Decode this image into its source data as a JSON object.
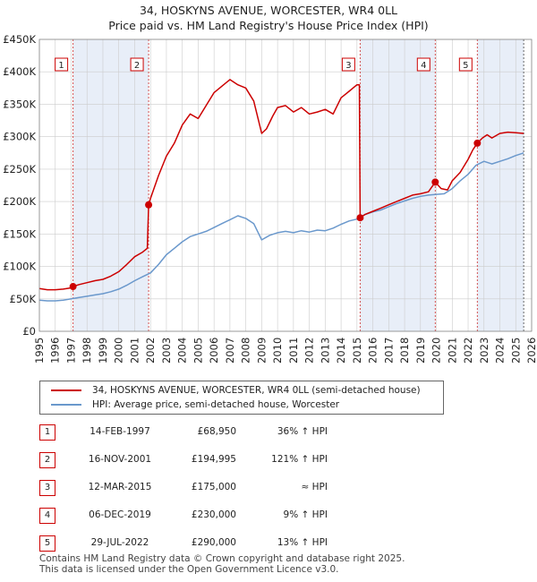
{
  "title_line1": "34, HOSKYNS AVENUE, WORCESTER, WR4 0LL",
  "title_line2": "Price paid vs. HM Land Registry's House Price Index (HPI)",
  "legend": {
    "red_label": "34, HOSKYNS AVENUE, WORCESTER, WR4 0LL (semi-detached house)",
    "blue_label": "HPI: Average price, semi-detached house, Worcester"
  },
  "sales": [
    {
      "num": "1",
      "date": "14-FEB-1997",
      "price": "£68,950",
      "hpi": "36% ↑ HPI"
    },
    {
      "num": "2",
      "date": "16-NOV-2001",
      "price": "£194,995",
      "hpi": "121% ↑ HPI"
    },
    {
      "num": "3",
      "date": "12-MAR-2015",
      "price": "£175,000",
      "hpi": "≈ HPI"
    },
    {
      "num": "4",
      "date": "06-DEC-2019",
      "price": "£230,000",
      "hpi": "9% ↑ HPI"
    },
    {
      "num": "5",
      "date": "29-JUL-2022",
      "price": "£290,000",
      "hpi": "13% ↑ HPI"
    }
  ],
  "footer": {
    "line1": "Contains HM Land Registry data © Crown copyright and database right 2025.",
    "line2": "This data is licensed under the Open Government Licence v3.0."
  },
  "colors": {
    "red": "#cc0000",
    "blue": "#6a98cc",
    "shade": "#e8eef8",
    "grid": "#cccccc",
    "marker_box": "#cc0000"
  },
  "chart_data": {
    "type": "line",
    "title": "34, HOSKYNS AVENUE, WORCESTER, WR4 0LL — Price paid vs. HM Land Registry's House Price Index (HPI)",
    "xlim": [
      1995,
      2026
    ],
    "ylim": [
      0,
      450000
    ],
    "x_ticks": [
      1995,
      1996,
      1997,
      1998,
      1999,
      2000,
      2001,
      2002,
      2003,
      2004,
      2005,
      2006,
      2007,
      2008,
      2009,
      2010,
      2011,
      2012,
      2013,
      2014,
      2015,
      2016,
      2017,
      2018,
      2019,
      2020,
      2021,
      2022,
      2023,
      2024,
      2025,
      2026
    ],
    "y_ticks": [
      {
        "value": 0,
        "label": "£0"
      },
      {
        "value": 50000,
        "label": "£50K"
      },
      {
        "value": 100000,
        "label": "£100K"
      },
      {
        "value": 150000,
        "label": "£150K"
      },
      {
        "value": 200000,
        "label": "£200K"
      },
      {
        "value": 250000,
        "label": "£250K"
      },
      {
        "value": 300000,
        "label": "£300K"
      },
      {
        "value": 350000,
        "label": "£350K"
      },
      {
        "value": 400000,
        "label": "£400K"
      },
      {
        "value": 450000,
        "label": "£450K"
      }
    ],
    "shaded_ranges": [
      [
        1997.12,
        2001.88
      ],
      [
        2015.2,
        2019.93
      ],
      [
        2022.58,
        2025.5
      ]
    ],
    "sale_markers": [
      {
        "label": "1",
        "x": 1997.12,
        "y": 68950
      },
      {
        "label": "2",
        "x": 2001.88,
        "y": 194995
      },
      {
        "label": "3",
        "x": 2015.2,
        "y": 175000
      },
      {
        "label": "4",
        "x": 2019.93,
        "y": 230000
      },
      {
        "label": "5",
        "x": 2022.58,
        "y": 290000
      }
    ],
    "series": [
      {
        "name": "34, HOSKYNS AVENUE, WORCESTER, WR4 0LL (semi-detached house)",
        "color": "#cc0000",
        "x": [
          1995.0,
          1995.5,
          1996.0,
          1996.5,
          1997.0,
          1997.12,
          1997.5,
          1998.0,
          1998.5,
          1999.0,
          1999.5,
          2000.0,
          2000.5,
          2001.0,
          2001.5,
          2001.8,
          2001.88,
          2002.0,
          2002.5,
          2003.0,
          2003.5,
          2004.0,
          2004.5,
          2005.0,
          2005.5,
          2006.0,
          2006.5,
          2007.0,
          2007.5,
          2008.0,
          2008.5,
          2009.0,
          2009.3,
          2009.7,
          2010.0,
          2010.5,
          2011.0,
          2011.5,
          2012.0,
          2012.5,
          2013.0,
          2013.5,
          2014.0,
          2014.5,
          2015.0,
          2015.15,
          2015.2,
          2015.5,
          2016.0,
          2016.5,
          2017.0,
          2017.5,
          2018.0,
          2018.5,
          2019.0,
          2019.5,
          2019.93,
          2020.3,
          2020.7,
          2021.0,
          2021.5,
          2022.0,
          2022.3,
          2022.58,
          2022.9,
          2023.2,
          2023.5,
          2024.0,
          2024.5,
          2025.0,
          2025.5
        ],
        "values": [
          66000,
          64000,
          64000,
          65000,
          67000,
          68950,
          72000,
          75000,
          78000,
          80000,
          85000,
          92000,
          103000,
          115000,
          122000,
          128000,
          194995,
          205000,
          240000,
          270000,
          290000,
          318000,
          335000,
          328000,
          348000,
          368000,
          378000,
          388000,
          380000,
          375000,
          355000,
          305000,
          312000,
          332000,
          345000,
          348000,
          338000,
          345000,
          335000,
          338000,
          342000,
          335000,
          360000,
          370000,
          380000,
          380000,
          175000,
          180000,
          185000,
          190000,
          195000,
          200000,
          205000,
          210000,
          212000,
          215000,
          230000,
          220000,
          218000,
          232000,
          245000,
          265000,
          280000,
          290000,
          298000,
          303000,
          298000,
          305000,
          307000,
          306000,
          305000
        ]
      },
      {
        "name": "HPI: Average price, semi-detached house, Worcester",
        "color": "#6a98cc",
        "x": [
          1995.0,
          1995.5,
          1996.0,
          1996.5,
          1997.0,
          1997.5,
          1998.0,
          1998.5,
          1999.0,
          1999.5,
          2000.0,
          2000.5,
          2001.0,
          2001.5,
          2002.0,
          2002.5,
          2003.0,
          2003.5,
          2004.0,
          2004.5,
          2005.0,
          2005.5,
          2006.0,
          2006.5,
          2007.0,
          2007.5,
          2008.0,
          2008.5,
          2009.0,
          2009.5,
          2010.0,
          2010.5,
          2011.0,
          2011.5,
          2012.0,
          2012.5,
          2013.0,
          2013.5,
          2014.0,
          2014.5,
          2015.0,
          2015.5,
          2016.0,
          2016.5,
          2017.0,
          2017.5,
          2018.0,
          2018.5,
          2019.0,
          2019.5,
          2020.0,
          2020.5,
          2021.0,
          2021.5,
          2022.0,
          2022.5,
          2023.0,
          2023.5,
          2024.0,
          2024.5,
          2025.0,
          2025.5
        ],
        "values": [
          48000,
          47000,
          47000,
          48000,
          50000,
          52000,
          54000,
          56000,
          58000,
          61000,
          65000,
          71000,
          78000,
          84000,
          90000,
          103000,
          118000,
          128000,
          138000,
          146000,
          150000,
          154000,
          160000,
          166000,
          172000,
          178000,
          174000,
          166000,
          141000,
          148000,
          152000,
          154000,
          152000,
          155000,
          153000,
          156000,
          155000,
          159000,
          165000,
          170000,
          173000,
          180000,
          184000,
          187000,
          192000,
          197000,
          201000,
          205000,
          208000,
          210000,
          211000,
          212000,
          220000,
          232000,
          242000,
          256000,
          262000,
          258000,
          262000,
          266000,
          271000,
          275000
        ]
      }
    ]
  }
}
